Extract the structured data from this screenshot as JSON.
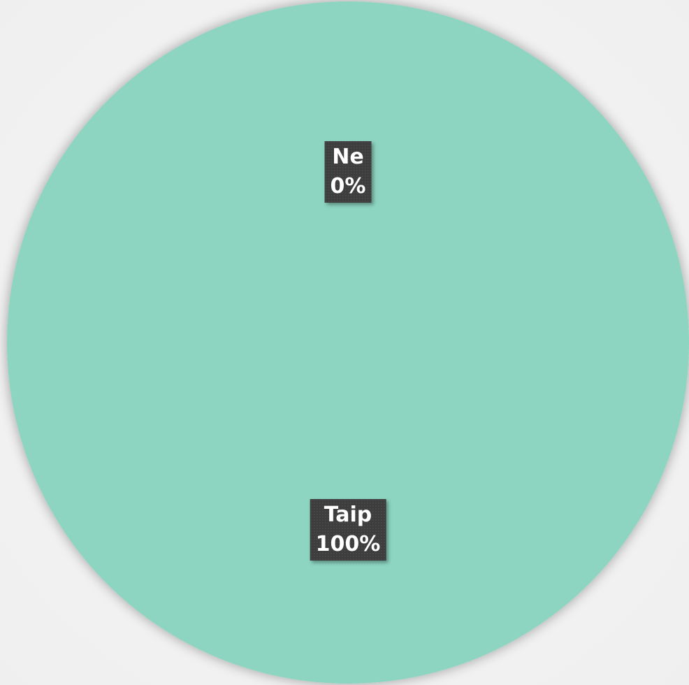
{
  "chart_data": {
    "type": "pie",
    "slices": [
      {
        "label": "Taip",
        "value": 100,
        "percent_label": "100%",
        "color": "#8dd5c0"
      },
      {
        "label": "Ne",
        "value": 0,
        "percent_label": "0%",
        "color": "#5fb8a0"
      }
    ],
    "legend": "none",
    "background_color": "#f0f0f0"
  }
}
